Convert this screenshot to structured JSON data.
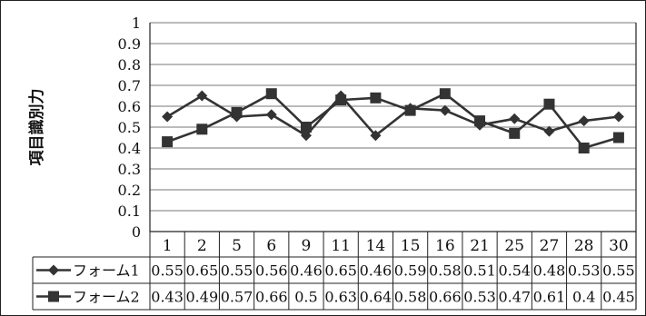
{
  "chart_data": {
    "type": "line",
    "title": "",
    "xlabel": "",
    "ylabel": "項目識別力",
    "ylim": [
      0,
      1
    ],
    "y_ticks": [
      "0",
      "0.1",
      "0.2",
      "0.3",
      "0.4",
      "0.5",
      "0.6",
      "0.7",
      "0.8",
      "0.9",
      "1"
    ],
    "grid": true,
    "legend_placement": "data-table-left",
    "categories": [
      "1",
      "2",
      "5",
      "6",
      "9",
      "11",
      "14",
      "15",
      "16",
      "21",
      "25",
      "27",
      "28",
      "30"
    ],
    "series": [
      {
        "name": "フォーム1",
        "marker": "diamond",
        "color": "#333333",
        "values": [
          0.55,
          0.65,
          0.55,
          0.56,
          0.46,
          0.65,
          0.46,
          0.59,
          0.58,
          0.51,
          0.54,
          0.48,
          0.53,
          0.55
        ],
        "labels": [
          "0.55",
          "0.65",
          "0.55",
          "0.56",
          "0.46",
          "0.65",
          "0.46",
          "0.59",
          "0.58",
          "0.51",
          "0.54",
          "0.48",
          "0.53",
          "0.55"
        ]
      },
      {
        "name": "フォーム2",
        "marker": "square",
        "color": "#333333",
        "values": [
          0.43,
          0.49,
          0.57,
          0.66,
          0.5,
          0.63,
          0.64,
          0.58,
          0.66,
          0.53,
          0.47,
          0.61,
          0.4,
          0.45
        ],
        "labels": [
          "0.43",
          "0.49",
          "0.57",
          "0.66",
          "0.5",
          "0.63",
          "0.64",
          "0.58",
          "0.66",
          "0.53",
          "0.47",
          "0.61",
          "0.4",
          "0.45"
        ]
      }
    ]
  }
}
